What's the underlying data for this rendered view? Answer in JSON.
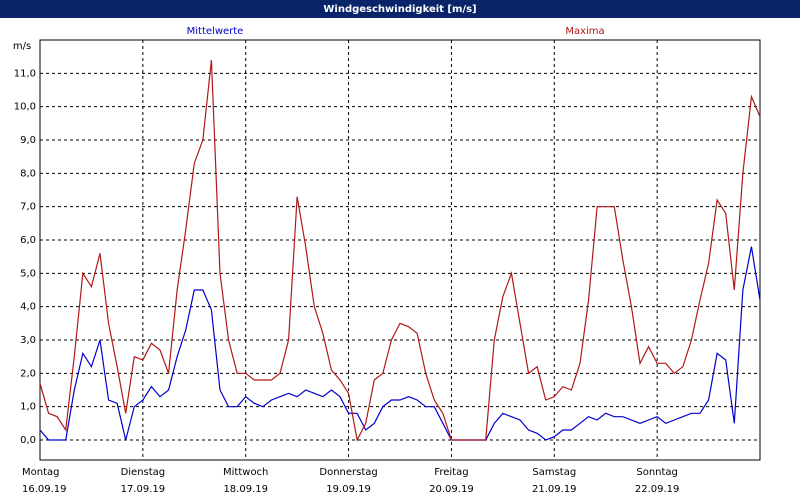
{
  "chart_data": {
    "type": "line",
    "title": "Windgeschwindigkeit [m/s]",
    "y_label": "m/s",
    "xlim": [
      0,
      168
    ],
    "ylim": [
      -0.6,
      12
    ],
    "yticks": [
      {
        "value": 0,
        "label": "0,0"
      },
      {
        "value": 1,
        "label": "1,0"
      },
      {
        "value": 2,
        "label": "2,0"
      },
      {
        "value": 3,
        "label": "3,0"
      },
      {
        "value": 4,
        "label": "4,0"
      },
      {
        "value": 5,
        "label": "5,0"
      },
      {
        "value": 6,
        "label": "6,0"
      },
      {
        "value": 7,
        "label": "7,0"
      },
      {
        "value": 8,
        "label": "8,0"
      },
      {
        "value": 9,
        "label": "9,0"
      },
      {
        "value": 10,
        "label": "10,0"
      },
      {
        "value": 11,
        "label": "11,0"
      }
    ],
    "xticks": [
      {
        "value": 0,
        "label": "Montag"
      },
      {
        "value": 24,
        "label": "Dienstag"
      },
      {
        "value": 48,
        "label": "Mittwoch"
      },
      {
        "value": 72,
        "label": "Donnerstag"
      },
      {
        "value": 96,
        "label": "Freitag"
      },
      {
        "value": 120,
        "label": "Samstag"
      },
      {
        "value": 144,
        "label": "Sonntag"
      }
    ],
    "xtick_dates": [
      "16.09.19",
      "17.09.19",
      "18.09.19",
      "19.09.19",
      "20.09.19",
      "21.09.19",
      "22.09.19"
    ],
    "grid": true,
    "x": [
      0,
      2,
      4,
      6,
      8,
      10,
      12,
      14,
      16,
      18,
      20,
      22,
      24,
      26,
      28,
      30,
      32,
      34,
      36,
      38,
      40,
      42,
      44,
      46,
      48,
      50,
      52,
      54,
      56,
      58,
      60,
      62,
      64,
      66,
      68,
      70,
      72,
      74,
      76,
      78,
      80,
      82,
      84,
      86,
      88,
      90,
      92,
      94,
      96,
      98,
      100,
      102,
      104,
      106,
      108,
      110,
      112,
      114,
      116,
      118,
      120,
      122,
      124,
      126,
      128,
      130,
      132,
      134,
      136,
      138,
      140,
      142,
      144,
      146,
      148,
      150,
      152,
      154,
      156,
      158,
      160,
      162,
      164,
      166,
      168
    ],
    "series": [
      {
        "name": "Mittelwerte",
        "color": "#0000cc",
        "values": [
          0.3,
          0,
          0,
          0,
          1.5,
          2.6,
          2.2,
          3.0,
          1.2,
          1.1,
          0,
          1.0,
          1.2,
          1.6,
          1.3,
          1.5,
          2.5,
          3.3,
          4.5,
          4.5,
          3.9,
          1.5,
          1.0,
          1.0,
          1.3,
          1.1,
          1.0,
          1.2,
          1.3,
          1.4,
          1.3,
          1.5,
          1.4,
          1.3,
          1.5,
          1.3,
          0.8,
          0.8,
          0.3,
          0.5,
          1.0,
          1.2,
          1.2,
          1.3,
          1.2,
          1.0,
          1.0,
          0.5,
          0,
          0,
          0,
          0,
          0,
          0.5,
          0.8,
          0.7,
          0.6,
          0.3,
          0.2,
          0,
          0.1,
          0.3,
          0.3,
          0.5,
          0.7,
          0.6,
          0.8,
          0.7,
          0.7,
          0.6,
          0.5,
          0.6,
          0.7,
          0.5,
          0.6,
          0.7,
          0.8,
          0.8,
          1.2,
          2.6,
          2.4,
          0.5,
          4.5,
          5.8,
          4.2
        ]
      },
      {
        "name": "Maxima",
        "color": "#b01818",
        "values": [
          1.7,
          0.8,
          0.7,
          0.3,
          2.5,
          5.0,
          4.6,
          5.6,
          3.5,
          2.2,
          0.8,
          2.5,
          2.4,
          2.9,
          2.7,
          2.0,
          4.5,
          6.3,
          8.3,
          9.0,
          11.4,
          5.0,
          3.0,
          2.0,
          2.0,
          1.8,
          1.8,
          1.8,
          2.0,
          3.0,
          7.3,
          5.8,
          4.0,
          3.2,
          2.1,
          1.8,
          1.4,
          0,
          0.5,
          1.8,
          2.0,
          3.0,
          3.5,
          3.4,
          3.2,
          2.0,
          1.2,
          0.8,
          0,
          0,
          0,
          0,
          0,
          3.0,
          4.3,
          5.0,
          3.5,
          2.0,
          2.2,
          1.2,
          1.3,
          1.6,
          1.5,
          2.3,
          4.2,
          7.0,
          7.0,
          7.0,
          5.4,
          4.0,
          2.3,
          2.8,
          2.3,
          2.3,
          2.0,
          2.2,
          3.0,
          4.2,
          5.3,
          7.2,
          6.8,
          4.5,
          8.0,
          10.3,
          9.7
        ]
      }
    ]
  }
}
